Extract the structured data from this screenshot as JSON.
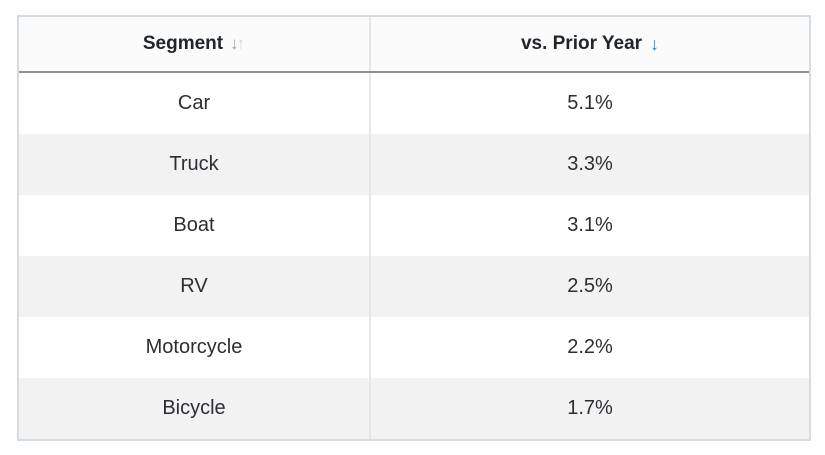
{
  "table": {
    "columns": [
      {
        "label": "Segment",
        "sort_state": "none"
      },
      {
        "label": "vs. Prior Year",
        "sort_state": "descending"
      }
    ],
    "sort_icons": {
      "inactive_down": "↓",
      "inactive_up": "↑",
      "active_down": "↓"
    },
    "rows": [
      {
        "segment": "Car",
        "value": "5.1%"
      },
      {
        "segment": "Truck",
        "value": "3.3%"
      },
      {
        "segment": "Boat",
        "value": "3.1%"
      },
      {
        "segment": "RV",
        "value": "2.5%"
      },
      {
        "segment": "Motorcycle",
        "value": "2.2%"
      },
      {
        "segment": "Bicycle",
        "value": "1.7%"
      }
    ],
    "colors": {
      "sort_active_blue": "#2979ff",
      "sort_inactive_dark_gray": "#9da3a8",
      "sort_inactive_light_gray": "#d4d6d9",
      "header_text": "#212529",
      "body_text": "#2b2e33",
      "row_alt_background": "#f2f2f2",
      "header_rule": "#8f8f8f",
      "outer_border": "#d4dbe1"
    }
  },
  "chart_data": {
    "type": "table",
    "title": "",
    "columns": [
      "Segment",
      "vs. Prior Year"
    ],
    "rows": [
      [
        "Car",
        "5.1%"
      ],
      [
        "Truck",
        "3.3%"
      ],
      [
        "Boat",
        "3.1%"
      ],
      [
        "RV",
        "2.5%"
      ],
      [
        "Motorcycle",
        "2.2%"
      ],
      [
        "Bicycle",
        "1.7%"
      ]
    ],
    "values_numeric_percent": [
      5.1,
      3.3,
      3.1,
      2.5,
      2.2,
      1.7
    ],
    "sort": {
      "column": "vs. Prior Year",
      "direction": "descending"
    }
  }
}
